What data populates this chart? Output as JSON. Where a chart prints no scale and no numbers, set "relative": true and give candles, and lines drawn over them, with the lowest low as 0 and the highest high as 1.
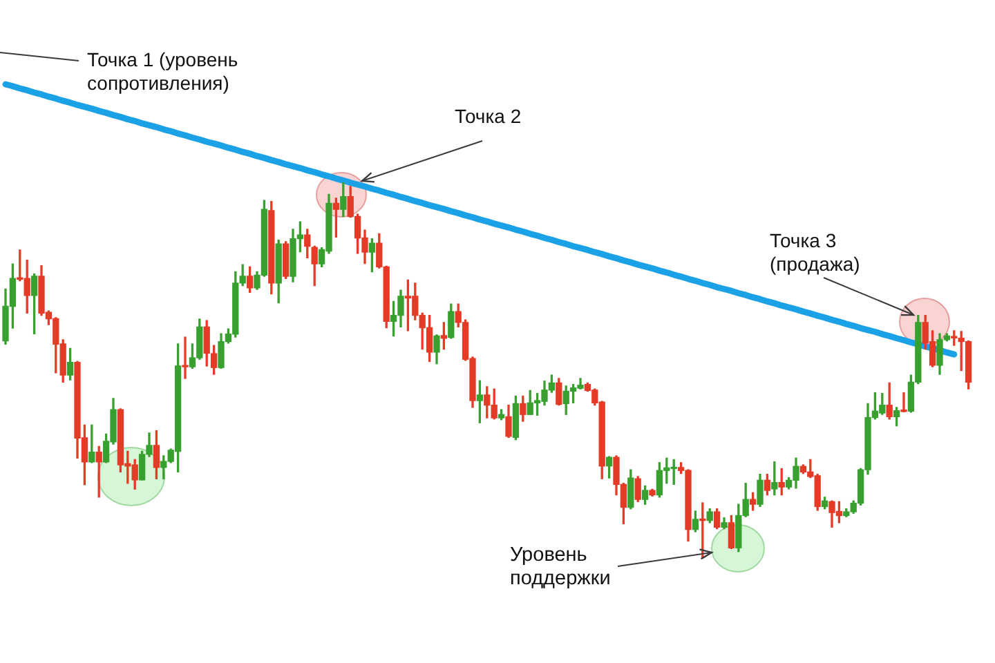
{
  "chart_data": {
    "type": "candlestick",
    "relative": true,
    "categories": [
      null,
      null,
      null,
      null,
      null,
      null,
      null,
      null,
      null,
      null,
      null,
      null,
      null,
      null,
      null,
      null,
      null,
      null,
      null,
      null,
      null,
      null,
      null,
      null,
      null,
      null,
      null,
      null,
      null,
      null,
      null,
      null,
      null,
      null,
      null,
      null,
      null,
      null,
      null,
      null,
      null,
      null,
      null,
      null,
      null,
      null,
      null,
      null,
      null,
      null,
      null,
      null,
      null,
      null,
      null,
      null,
      null,
      null,
      null,
      null,
      null,
      null,
      null,
      null,
      null,
      null,
      null,
      null,
      null,
      null,
      null,
      null,
      null,
      null,
      null,
      null,
      null,
      null,
      null,
      null,
      null,
      null,
      null,
      null,
      null,
      null,
      null,
      null,
      null,
      null,
      null,
      null,
      null,
      null,
      null,
      null,
      null,
      null,
      null,
      null,
      null,
      null,
      null,
      null,
      null,
      null,
      null,
      null,
      null,
      null,
      null,
      null,
      null,
      null,
      null,
      null,
      null,
      null,
      null,
      null,
      null,
      null,
      null,
      null,
      null,
      null,
      null,
      null,
      null,
      null,
      null,
      null,
      null,
      null,
      null
    ],
    "ohlc": [
      [
        0.578,
        0.716,
        0.569,
        0.67
      ],
      [
        0.67,
        0.783,
        0.612,
        0.744
      ],
      [
        0.746,
        0.82,
        0.738,
        0.742
      ],
      [
        0.744,
        0.793,
        0.652,
        0.699
      ],
      [
        0.699,
        0.756,
        0.597,
        0.75
      ],
      [
        0.75,
        0.778,
        0.646,
        0.652
      ],
      [
        0.654,
        0.658,
        0.621,
        0.637
      ],
      [
        0.637,
        0.64,
        0.493,
        0.569
      ],
      [
        0.57,
        0.581,
        0.468,
        0.487
      ],
      [
        0.487,
        0.558,
        0.474,
        0.521
      ],
      [
        0.521,
        0.523,
        0.266,
        0.319
      ],
      [
        0.32,
        0.354,
        0.195,
        0.256
      ],
      [
        0.256,
        0.354,
        0.254,
        0.282
      ],
      [
        0.282,
        0.297,
        0.162,
        0.256
      ],
      [
        0.256,
        0.33,
        0.254,
        0.311
      ],
      [
        0.309,
        0.425,
        0.303,
        0.395
      ],
      [
        0.395,
        0.397,
        0.229,
        0.248
      ],
      [
        0.251,
        0.284,
        0.199,
        0.245
      ],
      [
        0.248,
        0.262,
        0.183,
        0.208
      ],
      [
        0.208,
        0.284,
        0.208,
        0.276
      ],
      [
        0.276,
        0.333,
        0.27,
        0.3
      ],
      [
        0.3,
        0.339,
        0.211,
        0.241
      ],
      [
        0.241,
        0.272,
        0.211,
        0.257
      ],
      [
        0.257,
        0.29,
        0.254,
        0.287
      ],
      [
        0.284,
        0.57,
        0.229,
        0.511
      ],
      [
        0.511,
        0.588,
        0.478,
        0.509
      ],
      [
        0.509,
        0.57,
        0.505,
        0.533
      ],
      [
        0.533,
        0.636,
        0.529,
        0.615
      ],
      [
        0.615,
        0.632,
        0.511,
        0.545
      ],
      [
        0.544,
        0.566,
        0.489,
        0.507
      ],
      [
        0.507,
        0.597,
        0.505,
        0.576
      ],
      [
        0.576,
        0.61,
        0.572,
        0.596
      ],
      [
        0.596,
        0.762,
        0.588,
        0.732
      ],
      [
        0.732,
        0.781,
        0.725,
        0.75
      ],
      [
        0.75,
        0.775,
        0.707,
        0.719
      ],
      [
        0.719,
        0.762,
        0.715,
        0.753
      ],
      [
        0.753,
        0.952,
        0.75,
        0.928
      ],
      [
        0.925,
        0.949,
        0.703,
        0.732
      ],
      [
        0.732,
        0.846,
        0.679,
        0.836
      ],
      [
        0.836,
        0.842,
        0.744,
        0.75
      ],
      [
        0.75,
        0.875,
        0.735,
        0.85
      ],
      [
        0.85,
        0.895,
        0.815,
        0.86
      ],
      [
        0.86,
        0.875,
        0.799,
        0.83
      ],
      [
        0.827,
        0.83,
        0.725,
        0.783
      ],
      [
        0.783,
        0.826,
        0.775,
        0.821
      ],
      [
        0.817,
        0.968,
        0.811,
        0.944
      ],
      [
        0.944,
        0.958,
        0.854,
        0.928
      ],
      [
        0.928,
        1,
        0.909,
        0.962
      ],
      [
        0.962,
        0.989,
        0.907,
        0.909
      ],
      [
        0.909,
        0.915,
        0.811,
        0.852
      ],
      [
        0.852,
        0.873,
        0.784,
        0.814
      ],
      [
        0.814,
        0.85,
        0.762,
        0.838
      ],
      [
        0.838,
        0.863,
        0.772,
        0.775
      ],
      [
        0.775,
        0.777,
        0.613,
        0.63
      ],
      [
        0.63,
        0.683,
        0.591,
        0.646
      ],
      [
        0.646,
        0.713,
        0.615,
        0.697
      ],
      [
        0.697,
        0.74,
        0.605,
        0.692
      ],
      [
        0.697,
        0.732,
        0.634,
        0.646
      ],
      [
        0.646,
        0.652,
        0.556,
        0.613
      ],
      [
        0.613,
        0.646,
        0.523,
        0.548
      ],
      [
        0.548,
        0.594,
        0.517,
        0.591
      ],
      [
        0.592,
        0.627,
        0.556,
        0.585
      ],
      [
        0.587,
        0.676,
        0.585,
        0.656
      ],
      [
        0.656,
        0.676,
        0.615,
        0.627
      ],
      [
        0.627,
        0.634,
        0.526,
        0.529
      ],
      [
        0.531,
        0.535,
        0.401,
        0.419
      ],
      [
        0.419,
        0.472,
        0.36,
        0.434
      ],
      [
        0.434,
        0.456,
        0.373,
        0.407
      ],
      [
        0.407,
        0.45,
        0.37,
        0.373
      ],
      [
        0.373,
        0.395,
        0.368,
        0.382
      ],
      [
        0.376,
        0.407,
        0.321,
        0.324
      ],
      [
        0.321,
        0.431,
        0.315,
        0.411
      ],
      [
        0.411,
        0.431,
        0.364,
        0.382
      ],
      [
        0.382,
        0.446,
        0.382,
        0.413
      ],
      [
        0.413,
        0.438,
        0.38,
        0.419
      ],
      [
        0.417,
        0.471,
        0.407,
        0.447
      ],
      [
        0.447,
        0.487,
        0.441,
        0.466
      ],
      [
        0.466,
        0.478,
        0.407,
        0.409
      ],
      [
        0.411,
        0.458,
        0.382,
        0.444
      ],
      [
        0.444,
        0.462,
        0.413,
        0.453
      ],
      [
        0.452,
        0.478,
        0.45,
        0.46
      ],
      [
        0.462,
        0.466,
        0.444,
        0.446
      ],
      [
        0.447,
        0.45,
        0.407,
        0.413
      ],
      [
        0.415,
        0.417,
        0.211,
        0.245
      ],
      [
        0.245,
        0.27,
        0.213,
        0.268
      ],
      [
        0.268,
        0.272,
        0.168,
        0.196
      ],
      [
        0.196,
        0.199,
        0.091,
        0.135
      ],
      [
        0.135,
        0.235,
        0.131,
        0.213
      ],
      [
        0.211,
        0.217,
        0.15,
        0.156
      ],
      [
        0.156,
        0.192,
        0.143,
        0.18
      ],
      [
        0.18,
        0.183,
        0.165,
        0.168
      ],
      [
        0.168,
        0.254,
        0.162,
        0.233
      ],
      [
        0.233,
        0.266,
        0.199,
        0.24
      ],
      [
        0.238,
        0.262,
        0.196,
        0.241
      ],
      [
        0.241,
        0.254,
        0.225,
        0.233
      ],
      [
        0.233,
        0.235,
        0.045,
        0.076
      ],
      [
        0.076,
        0.125,
        0.07,
        0.103
      ],
      [
        0.103,
        0.147,
        0,
        0.1
      ],
      [
        0.1,
        0.131,
        0.094,
        0.123
      ],
      [
        0.123,
        0.131,
        0.078,
        0.082
      ],
      [
        0.082,
        0.107,
        0.078,
        0.094
      ],
      [
        0.094,
        0.113,
        0.025,
        0.027
      ],
      [
        0.027,
        0.143,
        0.017,
        0.113
      ],
      [
        0.113,
        0.199,
        0.11,
        0.156
      ],
      [
        0.156,
        0.174,
        0.127,
        0.143
      ],
      [
        0.143,
        0.223,
        0.137,
        0.207
      ],
      [
        0.207,
        0.223,
        0.168,
        0.18
      ],
      [
        0.184,
        0.256,
        0.168,
        0.201
      ],
      [
        0.201,
        0.238,
        0.168,
        0.189
      ],
      [
        0.189,
        0.214,
        0.184,
        0.207
      ],
      [
        0.207,
        0.266,
        0.186,
        0.244
      ],
      [
        0.244,
        0.248,
        0.225,
        0.229
      ],
      [
        0.229,
        0.262,
        0.214,
        0.217
      ],
      [
        0.219,
        0.223,
        0.127,
        0.137
      ],
      [
        0.137,
        0.162,
        0.131,
        0.152
      ],
      [
        0.15,
        0.152,
        0.082,
        0.121
      ],
      [
        0.124,
        0.15,
        0.094,
        0.113
      ],
      [
        0.113,
        0.131,
        0.11,
        0.123
      ],
      [
        0.123,
        0.152,
        0.119,
        0.146
      ],
      [
        0.146,
        0.238,
        0.141,
        0.235
      ],
      [
        0.235,
        0.411,
        0.223,
        0.374
      ],
      [
        0.374,
        0.44,
        0.37,
        0.391
      ],
      [
        0.386,
        0.438,
        0.382,
        0.407
      ],
      [
        0.407,
        0.466,
        0.37,
        0.376
      ],
      [
        0.376,
        0.401,
        0.352,
        0.392
      ],
      [
        0.394,
        0.44,
        0.389,
        0.39
      ],
      [
        0.391,
        0.487,
        0.388,
        0.468
      ],
      [
        0.468,
        0.646,
        0.464,
        0.627
      ],
      [
        0.627,
        0.646,
        0.556,
        0.572
      ],
      [
        0.576,
        0.605,
        0.509,
        0.513
      ],
      [
        0.513,
        0.597,
        0.489,
        0.581
      ],
      [
        0.581,
        0.597,
        0.578,
        0.591
      ],
      [
        0.588,
        0.605,
        0.566,
        0.586
      ],
      [
        0.585,
        0.603,
        0.499,
        0.576
      ],
      [
        0.576,
        0.578,
        0.45,
        0.468
      ]
    ],
    "colors": [
      "#37a02f",
      "#37a02f",
      "#e33b26",
      "#e33b26",
      "#37a02f",
      "#e33b26",
      "#e33b26",
      "#e33b26",
      "#e33b26",
      "#37a02f",
      "#e33b26",
      "#e33b26",
      "#37a02f",
      "#e33b26",
      "#37a02f",
      "#37a02f",
      "#e33b26",
      "#e33b26",
      "#e33b26",
      "#37a02f",
      "#37a02f",
      "#e33b26",
      "#37a02f",
      "#37a02f",
      "#37a02f",
      "#e33b26",
      "#37a02f",
      "#37a02f",
      "#e33b26",
      "#e33b26",
      "#37a02f",
      "#37a02f",
      "#37a02f",
      "#37a02f",
      "#e33b26",
      "#37a02f",
      "#37a02f",
      "#e33b26",
      "#37a02f",
      "#e33b26",
      "#37a02f",
      "#37a02f",
      "#e33b26",
      "#e33b26",
      "#37a02f",
      "#37a02f",
      "#e33b26",
      "#37a02f",
      "#e33b26",
      "#e33b26",
      "#e33b26",
      "#37a02f",
      "#e33b26",
      "#e33b26",
      "#37a02f",
      "#37a02f",
      "#e33b26",
      "#e33b26",
      "#e33b26",
      "#e33b26",
      "#37a02f",
      "#e33b26",
      "#37a02f",
      "#e33b26",
      "#e33b26",
      "#e33b26",
      "#37a02f",
      "#e33b26",
      "#e33b26",
      "#37a02f",
      "#e33b26",
      "#37a02f",
      "#e33b26",
      "#37a02f",
      "#37a02f",
      "#37a02f",
      "#37a02f",
      "#e33b26",
      "#37a02f",
      "#37a02f",
      "#37a02f",
      "#e33b26",
      "#e33b26",
      "#e33b26",
      "#37a02f",
      "#e33b26",
      "#e33b26",
      "#37a02f",
      "#e33b26",
      "#37a02f",
      "#e33b26",
      "#37a02f",
      "#37a02f",
      "#37a02f",
      "#e33b26",
      "#e33b26",
      "#37a02f",
      "#e33b26",
      "#37a02f",
      "#e33b26",
      "#37a02f",
      "#e33b26",
      "#37a02f",
      "#37a02f",
      "#e33b26",
      "#37a02f",
      "#e33b26",
      "#37a02f",
      "#e33b26",
      "#37a02f",
      "#37a02f",
      "#e33b26",
      "#e33b26",
      "#e33b26",
      "#37a02f",
      "#e33b26",
      "#e33b26",
      "#37a02f",
      "#37a02f",
      "#37a02f",
      "#37a02f",
      "#37a02f",
      "#37a02f",
      "#e33b26",
      "#37a02f",
      "#e33b26",
      "#37a02f",
      "#37a02f",
      "#e33b26",
      "#e33b26",
      "#37a02f",
      "#37a02f",
      "#e33b26",
      "#e33b26",
      "#e33b26"
    ],
    "series": [
      {
        "type": "line",
        "color": "#1ba1e6",
        "values": [
          1.261,
          1.256,
          1.25,
          1.245,
          1.239,
          1.234,
          1.228,
          1.223,
          1.217,
          1.212,
          1.206,
          1.201,
          1.196,
          1.19,
          1.185,
          1.179,
          1.174,
          1.168,
          1.163,
          1.157,
          1.152,
          1.147,
          1.141,
          1.136,
          1.13,
          1.125,
          1.119,
          1.114,
          1.108,
          1.103,
          1.098,
          1.092,
          1.087,
          1.081,
          1.076,
          1.07,
          1.065,
          1.059,
          1.054,
          1.048,
          1.043,
          1.038,
          1.032,
          1.027,
          1.021,
          1.016,
          1.01,
          1.005,
          0.999,
          0.994,
          0.989,
          0.983,
          0.978,
          0.972,
          0.967,
          0.961,
          0.956,
          0.95,
          0.945,
          0.939,
          0.934,
          0.929,
          0.923,
          0.918,
          0.912,
          0.907,
          0.901,
          0.896,
          0.89,
          0.885,
          0.88,
          0.874,
          0.869,
          0.863,
          0.858,
          0.852,
          0.847,
          0.841,
          0.836,
          0.83,
          0.825,
          0.82,
          0.814,
          0.809,
          0.803,
          0.798,
          0.792,
          0.787,
          0.781,
          0.776,
          0.771,
          0.765,
          0.76,
          0.754,
          0.749,
          0.743,
          0.738,
          0.732,
          0.727,
          0.721,
          0.716,
          0.711,
          0.705,
          0.7,
          0.694,
          0.689,
          0.683,
          0.678,
          0.672,
          0.667,
          0.662,
          0.656,
          0.651,
          0.645,
          0.64,
          0.634,
          0.629,
          0.623,
          0.618,
          0.612,
          0.607,
          0.602,
          0.596,
          0.591,
          0.585,
          0.58,
          0.574,
          0.569,
          0.563,
          0.558,
          0.553,
          0.547,
          0.542,
          null,
          null
        ]
      }
    ],
    "annotations": [
      "Точка 1 (уровень сопротивления)",
      "Точка 2",
      "Точка 3 (продажа)",
      "Уровень поддержки"
    ],
    "marker": "none",
    "grid": false,
    "legend": false,
    "tick_labels": false
  }
}
